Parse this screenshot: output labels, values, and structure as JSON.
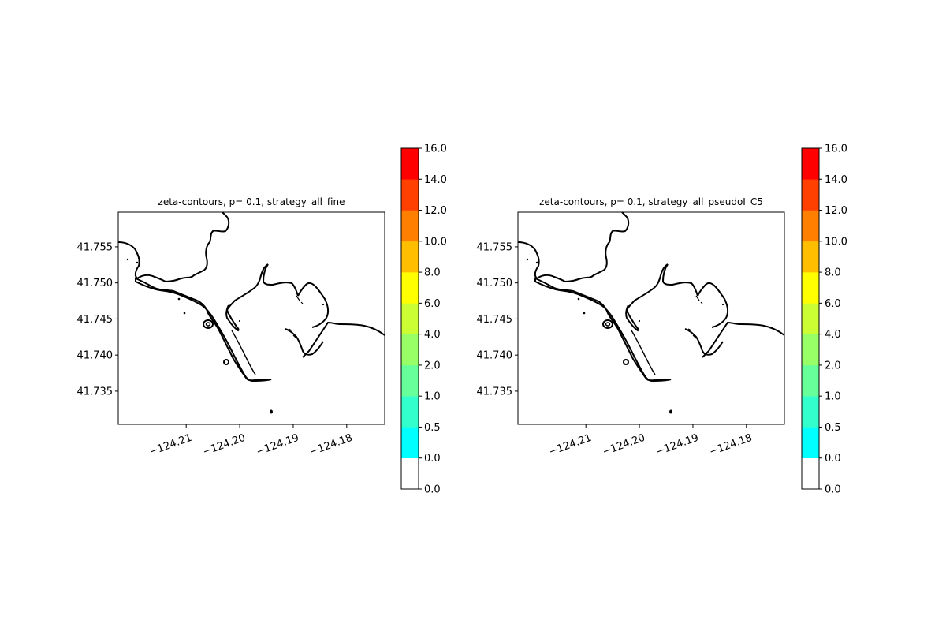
{
  "chart_data": [
    {
      "type": "contour",
      "title": "zeta-contours, p= 0.1, strategy_all_fine",
      "xlim": [
        -124.2227,
        -124.1729
      ],
      "ylim": [
        41.7304,
        41.7598
      ],
      "xticks": [
        "−124.21",
        "−124.20",
        "−124.19",
        "−124.18"
      ],
      "xtick_values": [
        -124.21,
        -124.2,
        -124.19,
        -124.18
      ],
      "yticks": [
        "41.735",
        "41.740",
        "41.745",
        "41.750",
        "41.755"
      ],
      "ytick_values": [
        41.735,
        41.74,
        41.745,
        41.75,
        41.755
      ],
      "colorbar": {
        "labels": [
          "0.0",
          "0.0",
          "0.5",
          "1.0",
          "2.0",
          "4.0",
          "6.0",
          "8.0",
          "10.0",
          "12.0",
          "14.0",
          "16.0"
        ],
        "colors": [
          "#ffffff",
          "#00ffff",
          "#33ffcc",
          "#66ff99",
          "#99ff66",
          "#ccff33",
          "#ffff00",
          "#ffbf00",
          "#ff7f00",
          "#ff4000",
          "#ff0000"
        ]
      }
    },
    {
      "type": "contour",
      "title": "zeta-contours, p= 0.1, strategy_all_pseudoI_C5",
      "xlim": [
        -124.2227,
        -124.1729
      ],
      "ylim": [
        41.7304,
        41.7598
      ],
      "xticks": [
        "−124.21",
        "−124.20",
        "−124.19",
        "−124.18"
      ],
      "xtick_values": [
        -124.21,
        -124.2,
        -124.19,
        -124.18
      ],
      "yticks": [
        "41.735",
        "41.740",
        "41.745",
        "41.750",
        "41.755"
      ],
      "ytick_values": [
        41.735,
        41.74,
        41.745,
        41.75,
        41.755
      ],
      "colorbar": {
        "labels": [
          "0.0",
          "0.0",
          "0.5",
          "1.0",
          "2.0",
          "4.0",
          "6.0",
          "8.0",
          "10.0",
          "12.0",
          "14.0",
          "16.0"
        ],
        "colors": [
          "#ffffff",
          "#00ffff",
          "#33ffcc",
          "#66ff99",
          "#99ff66",
          "#ccff33",
          "#ffff00",
          "#ffbf00",
          "#ff7f00",
          "#ff4000",
          "#ff0000"
        ]
      }
    }
  ]
}
